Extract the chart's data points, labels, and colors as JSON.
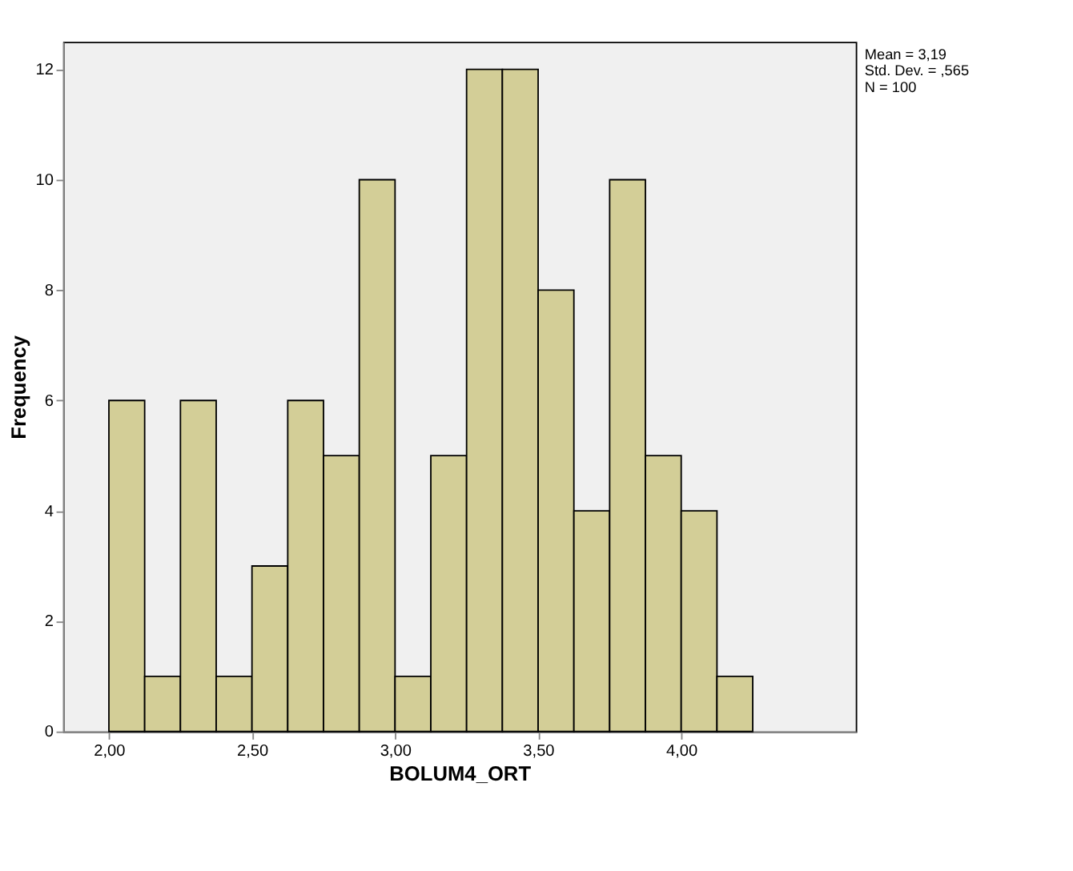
{
  "chart_data": {
    "type": "histogram",
    "xlabel": "BOLUM4_ORT",
    "ylabel": "Frequency",
    "bins": [
      2.0,
      2.125,
      2.25,
      2.375,
      2.5,
      2.625,
      2.75,
      2.875,
      3.0,
      3.125,
      3.25,
      3.375,
      3.5,
      3.625,
      3.75,
      3.875,
      4.0,
      4.125,
      4.25
    ],
    "values": [
      6,
      1,
      6,
      1,
      3,
      6,
      5,
      10,
      1,
      5,
      12,
      12,
      8,
      4,
      10,
      5,
      4,
      1
    ],
    "color": "#d3ce97",
    "xlim": [
      1.84,
      4.61
    ],
    "xticks": [
      {
        "value": 2.0,
        "label": "2,00"
      },
      {
        "value": 2.5,
        "label": "2,50"
      },
      {
        "value": 3.0,
        "label": "3,00"
      },
      {
        "value": 3.5,
        "label": "3,50"
      },
      {
        "value": 4.0,
        "label": "4,00"
      }
    ],
    "ylim": [
      0,
      12.5
    ],
    "yticks": [
      0,
      2,
      4,
      6,
      8,
      10,
      12
    ],
    "grid": false,
    "annotations": [
      "Mean = 3,19",
      "Std. Dev. = ,565",
      "N = 100"
    ]
  }
}
